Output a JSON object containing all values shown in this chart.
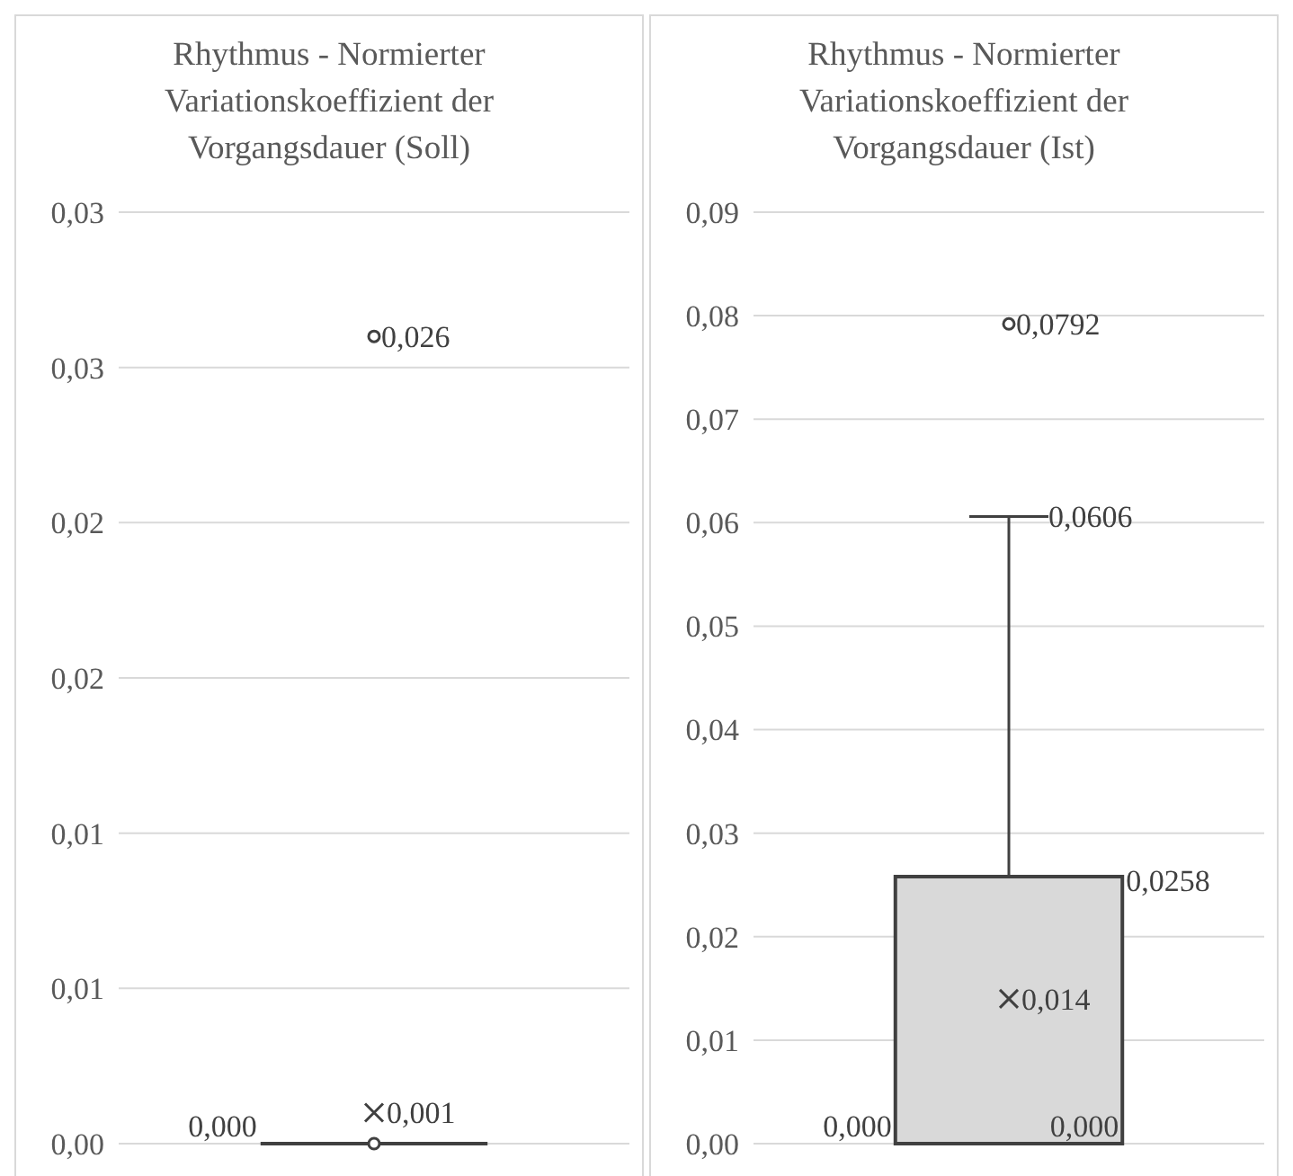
{
  "chart_data": [
    {
      "type": "box",
      "title": "Rhythmus - Normierter Variationskoeffizient der Vorgangsdauer (Soll)",
      "categories": [
        null
      ],
      "color": "#404040",
      "boxes": [
        {
          "low": 0,
          "q1": 0,
          "median": 0,
          "q3": 0,
          "high": 0,
          "mean": 0.001,
          "outliers": [
            0,
            0.026
          ]
        }
      ],
      "ylim": [
        0,
        0.03
      ],
      "yticks": [
        {
          "value": 0,
          "label": "0,00"
        },
        {
          "value": 0.005,
          "label": "0,01"
        },
        {
          "value": 0.01,
          "label": "0,01"
        },
        {
          "value": 0.015,
          "label": "0,02"
        },
        {
          "value": 0.02,
          "label": "0,02"
        },
        {
          "value": 0.025,
          "label": "0,03"
        },
        {
          "value": 0.03,
          "label": "0,03"
        }
      ],
      "grid": "y",
      "annotations": [
        "0,000",
        "0,001",
        "0,026"
      ]
    },
    {
      "type": "box",
      "title": "Rhythmus - Normierter Variationskoeffizient der Vorgangsdauer (Ist)",
      "categories": [
        null
      ],
      "color": "#d9d9d9",
      "boxes": [
        {
          "low": 0,
          "q1": 0,
          "median": 0,
          "q3": 0.0258,
          "high": 0.0606,
          "mean": 0.014,
          "outliers": [
            0.0792
          ]
        }
      ],
      "ylim": [
        0,
        0.09
      ],
      "yticks": [
        {
          "value": 0,
          "label": "0,00"
        },
        {
          "value": 0.01,
          "label": "0,01"
        },
        {
          "value": 0.02,
          "label": "0,02"
        },
        {
          "value": 0.03,
          "label": "0,03"
        },
        {
          "value": 0.04,
          "label": "0,04"
        },
        {
          "value": 0.05,
          "label": "0,05"
        },
        {
          "value": 0.06,
          "label": "0,06"
        },
        {
          "value": 0.07,
          "label": "0,07"
        },
        {
          "value": 0.08,
          "label": "0,08"
        },
        {
          "value": 0.09,
          "label": "0,09"
        }
      ],
      "grid": "y",
      "annotations": [
        "0,000",
        "0,000",
        "0,0258",
        "0,0606",
        "0,014",
        "0,0792"
      ]
    }
  ]
}
